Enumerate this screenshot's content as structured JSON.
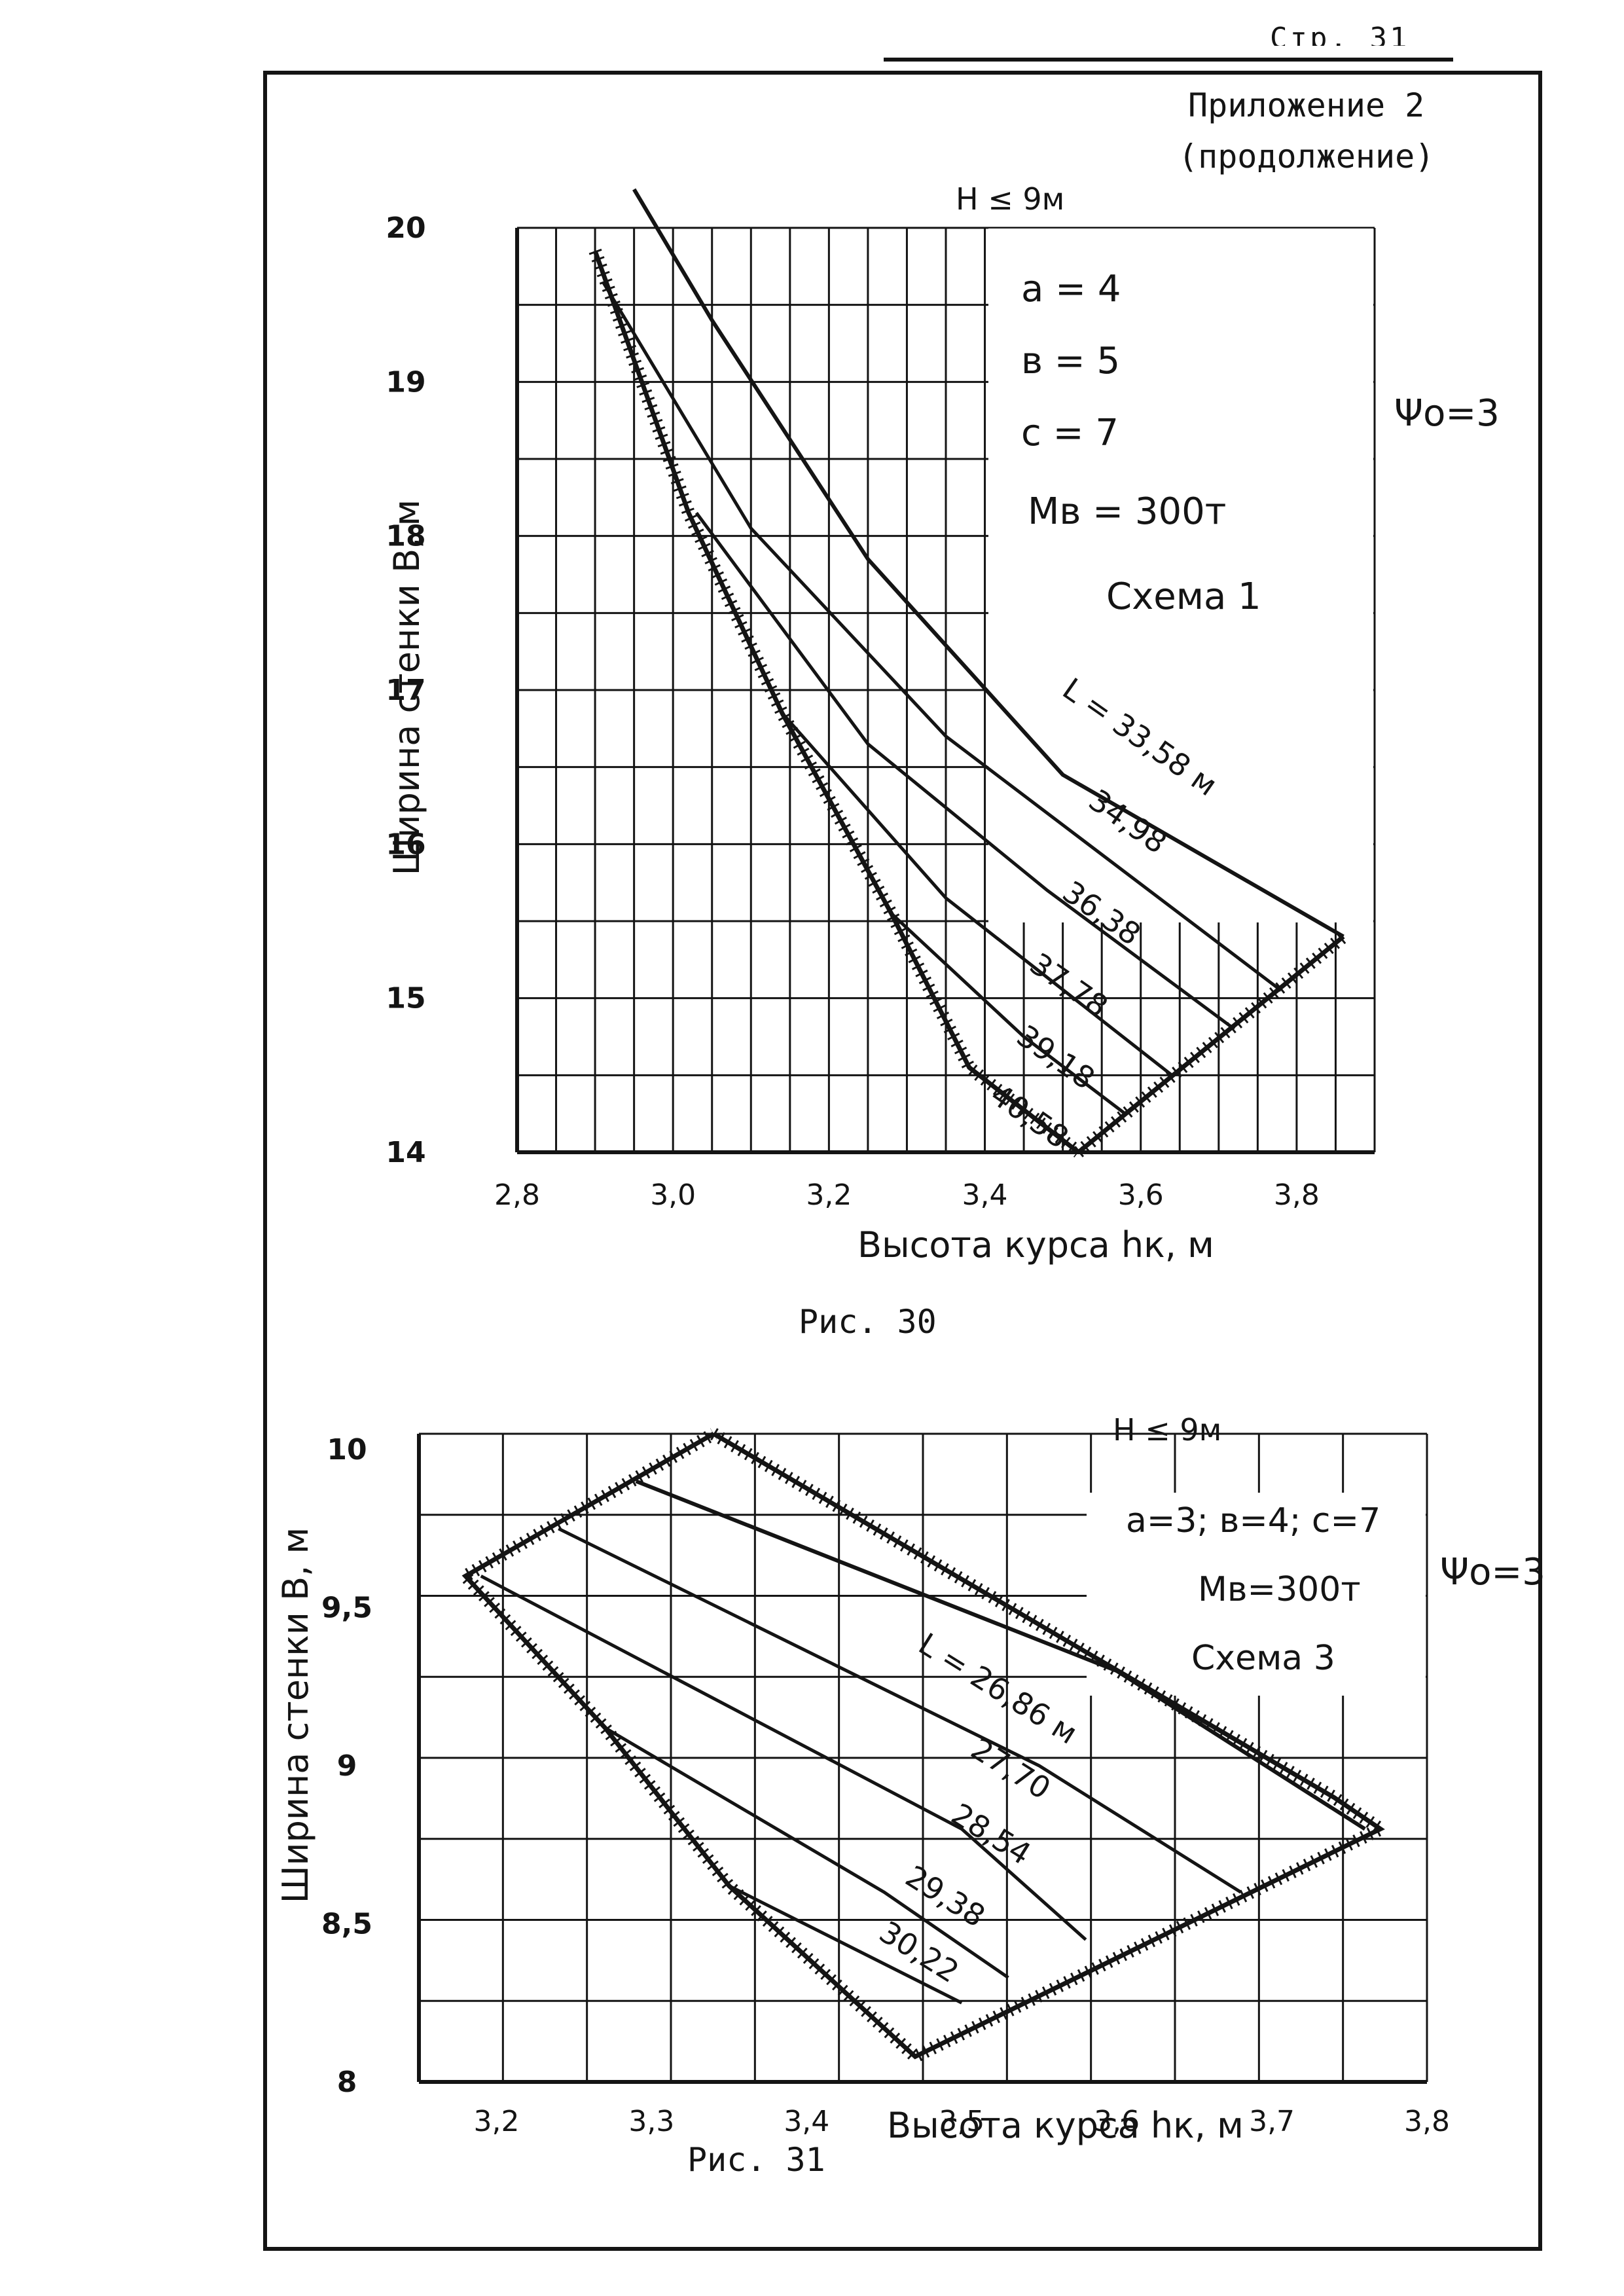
{
  "page": {
    "page_number": "Стр. 31",
    "appendix_line1": "Приложение 2",
    "appendix_line2": "(продолжение)"
  },
  "colors": {
    "ink": "#141414",
    "paper": "#ffffff"
  },
  "chart_data": [
    {
      "type": "line",
      "caption": "Рис. 30",
      "xlabel": "Высота курса hк, м",
      "ylabel": "Ширина стенки В, м",
      "xlim": [
        2.8,
        3.9
      ],
      "ylim": [
        14,
        20
      ],
      "x_ticks": [
        "2,8",
        "3,0",
        "3,2",
        "3,4",
        "3,6",
        "3,8"
      ],
      "y_ticks": [
        "14",
        "15",
        "16",
        "17",
        "18",
        "19",
        "20"
      ],
      "top_label": "H ≤ 9м",
      "side_label": "Ψо=3",
      "params": [
        "a = 4",
        "в = 5",
        "c = 7",
        "Mв = 300т",
        "Схема 1"
      ],
      "boundary_lower_left": [
        [
          2.9,
          19.85
        ],
        [
          3.02,
          18.15
        ],
        [
          3.14,
          16.85
        ],
        [
          3.28,
          15.55
        ],
        [
          3.38,
          14.55
        ],
        [
          3.52,
          14.0
        ]
      ],
      "boundary_lower_right": [
        [
          3.52,
          14.0
        ],
        [
          3.86,
          15.4
        ]
      ],
      "series": [
        {
          "name": "33,58",
          "label": "L = 33,58 м",
          "points": [
            [
              2.95,
              20.25
            ],
            [
              3.05,
              19.4
            ],
            [
              3.25,
              17.85
            ],
            [
              3.5,
              16.45
            ],
            [
              3.86,
              15.4
            ]
          ]
        },
        {
          "name": "34,98",
          "points": [
            [
              2.91,
              19.65
            ],
            [
              3.1,
              18.05
            ],
            [
              3.35,
              16.7
            ],
            [
              3.78,
              15.05
            ]
          ]
        },
        {
          "name": "36,38",
          "points": [
            [
              3.03,
              18.15
            ],
            [
              3.25,
              16.65
            ],
            [
              3.48,
              15.7
            ],
            [
              3.72,
              14.8
            ]
          ]
        },
        {
          "name": "37,78",
          "points": [
            [
              3.14,
              16.85
            ],
            [
              3.35,
              15.65
            ],
            [
              3.64,
              14.5
            ]
          ]
        },
        {
          "name": "39,18",
          "points": [
            [
              3.28,
              15.55
            ],
            [
              3.45,
              14.75
            ],
            [
              3.58,
              14.25
            ]
          ]
        },
        {
          "name": "40,58",
          "points": [
            [
              3.38,
              14.55
            ],
            [
              3.52,
              14.0
            ]
          ]
        }
      ]
    },
    {
      "type": "line",
      "caption": "Рис. 31",
      "xlabel": "Высота курса hк, м",
      "ylabel": "Ширина стенки В, м",
      "xlim": [
        3.15,
        3.8
      ],
      "ylim": [
        8,
        10.05
      ],
      "x_ticks": [
        "3,2",
        "3,3",
        "3,4",
        "3,5",
        "3,6",
        "3,7",
        "3,8"
      ],
      "y_ticks": [
        "8",
        "8,5",
        "9",
        "9,5",
        "10"
      ],
      "top_label": "H ≤ 9м",
      "side_label": "Ψо=3",
      "params": [
        "a=3; в=4; c=7",
        "Mв=300т",
        "Схема 3"
      ],
      "boundary": [
        [
          3.34,
          10.05
        ],
        [
          3.74,
          8.9
        ],
        [
          3.77,
          8.8
        ],
        [
          3.47,
          8.08
        ],
        [
          3.35,
          8.62
        ],
        [
          3.27,
          9.12
        ],
        [
          3.18,
          9.6
        ],
        [
          3.34,
          10.05
        ]
      ],
      "series": [
        {
          "name": "26,86",
          "label": "L = 26,86 м",
          "points": [
            [
              3.29,
              9.9
            ],
            [
              3.6,
              9.3
            ],
            [
              3.76,
              8.8
            ]
          ]
        },
        {
          "name": "27,70",
          "points": [
            [
              3.24,
              9.75
            ],
            [
              3.55,
              9.0
            ],
            [
              3.68,
              8.6
            ]
          ]
        },
        {
          "name": "28,54",
          "points": [
            [
              3.19,
              9.6
            ],
            [
              3.5,
              8.8
            ],
            [
              3.58,
              8.45
            ]
          ]
        },
        {
          "name": "29,38",
          "points": [
            [
              3.27,
              9.12
            ],
            [
              3.45,
              8.6
            ],
            [
              3.53,
              8.33
            ]
          ]
        },
        {
          "name": "30,22",
          "points": [
            [
              3.35,
              8.62
            ],
            [
              3.5,
              8.25
            ]
          ]
        }
      ]
    }
  ]
}
